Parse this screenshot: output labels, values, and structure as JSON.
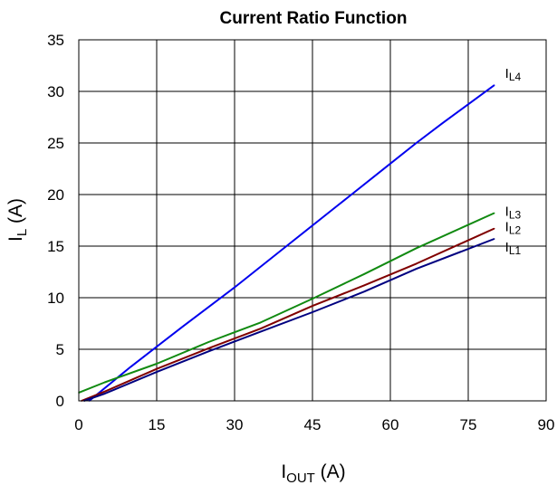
{
  "chart_data": {
    "type": "line",
    "title": "Current Ratio Function",
    "xlabel": {
      "main": "I",
      "sub": "OUT",
      "unit": " (A)"
    },
    "ylabel": {
      "main": "I",
      "sub": "L",
      "unit": " (A)"
    },
    "xlim": [
      0,
      90
    ],
    "ylim": [
      0,
      35
    ],
    "xticks": [
      "0",
      "15",
      "30",
      "45",
      "60",
      "75",
      "90"
    ],
    "yticks": [
      "0",
      "5",
      "10",
      "15",
      "20",
      "25",
      "30",
      "35"
    ],
    "grid": true,
    "series": [
      {
        "name": "IL4",
        "label_main": "I",
        "label_sub": "L4",
        "color": "#0000ee",
        "x": [
          2,
          10,
          20,
          30,
          40,
          50,
          60,
          65,
          70,
          80
        ],
        "y": [
          0,
          3.3,
          7.2,
          11,
          15,
          19,
          23,
          25,
          26.9,
          30.6
        ]
      },
      {
        "name": "IL3",
        "label_main": "I",
        "label_sub": "L3",
        "color": "#118a11",
        "x": [
          0,
          5,
          15,
          25,
          35,
          45,
          55,
          65,
          80
        ],
        "y": [
          0.8,
          1.8,
          3.6,
          5.7,
          7.6,
          9.9,
          12.3,
          14.8,
          18.2
        ]
      },
      {
        "name": "IL2",
        "label_main": "I",
        "label_sub": "L2",
        "color": "#800000",
        "x": [
          0.5,
          5,
          15,
          25,
          35,
          45,
          55,
          65,
          80
        ],
        "y": [
          0,
          0.9,
          3.1,
          5.1,
          7.0,
          9.2,
          11.2,
          13.3,
          16.7
        ]
      },
      {
        "name": "IL1",
        "label_main": "I",
        "label_sub": "L1",
        "color": "#000080",
        "x": [
          1,
          5,
          15,
          25,
          35,
          45,
          55,
          65,
          80
        ],
        "y": [
          0,
          0.7,
          2.8,
          4.8,
          6.7,
          8.6,
          10.6,
          12.8,
          15.7
        ]
      }
    ]
  }
}
